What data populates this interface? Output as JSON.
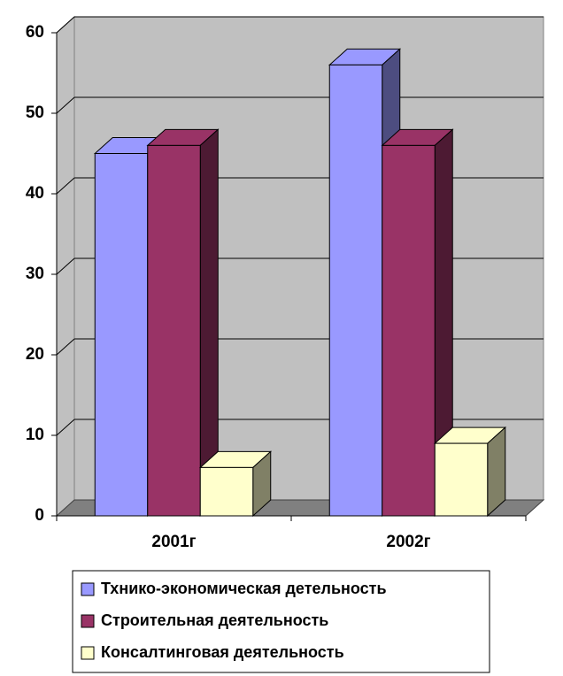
{
  "chart_data": {
    "type": "bar3d",
    "categories": [
      "2001г",
      "2002г"
    ],
    "series": [
      {
        "name": "Тхнико-экономическая детельность",
        "color": "#9999ff",
        "values": [
          45,
          56
        ]
      },
      {
        "name": "Строительная деятельность",
        "color": "#993366",
        "values": [
          46,
          46
        ]
      },
      {
        "name": "Консалтинговая деятельность",
        "color": "#ffffcc",
        "values": [
          6,
          9
        ]
      }
    ],
    "ylim": [
      0,
      60
    ],
    "yticks": [
      0,
      10,
      20,
      30,
      40,
      50,
      60
    ],
    "grid": true,
    "legend": "bottom"
  }
}
